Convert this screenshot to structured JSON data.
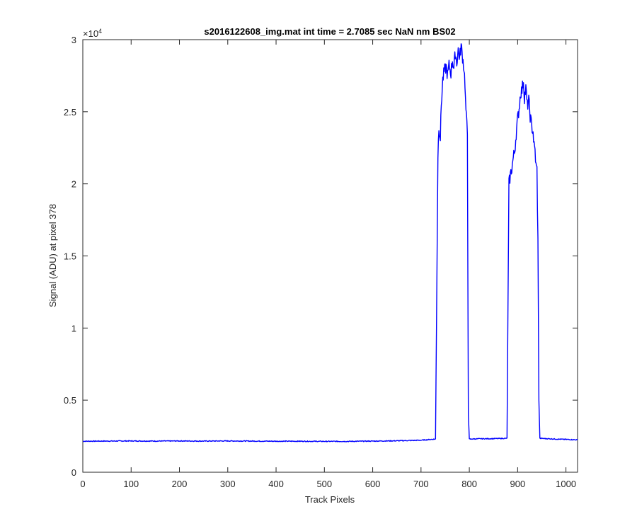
{
  "chart_data": {
    "type": "line",
    "title": "s2016122608_img.mat int time = 2.7085 sec  NaN nm BS02",
    "xlabel": "Track Pixels",
    "ylabel": "Signal (ADU) at pixel 378",
    "xlim": [
      0,
      1024
    ],
    "ylim": [
      0,
      30000
    ],
    "x_ticks": [
      0,
      100,
      200,
      300,
      400,
      500,
      600,
      700,
      800,
      900,
      1000
    ],
    "x_tick_labels": [
      "0",
      "100",
      "200",
      "300",
      "400",
      "500",
      "600",
      "700",
      "800",
      "900",
      "1000"
    ],
    "y_ticks": [
      0,
      5000,
      10000,
      15000,
      20000,
      25000,
      30000
    ],
    "y_tick_labels": [
      "0",
      "0.5",
      "1",
      "1.5",
      "2",
      "2.5",
      "3"
    ],
    "y_exponent_base": "×10",
    "y_exponent_power": "4",
    "grid": false,
    "series": [
      {
        "color": "#0000ff",
        "points": [
          [
            0,
            2150
          ],
          [
            50,
            2160
          ],
          [
            100,
            2170
          ],
          [
            150,
            2160
          ],
          [
            200,
            2170
          ],
          [
            250,
            2160
          ],
          [
            300,
            2170
          ],
          [
            350,
            2160
          ],
          [
            400,
            2150
          ],
          [
            450,
            2150
          ],
          [
            500,
            2140
          ],
          [
            550,
            2140
          ],
          [
            600,
            2160
          ],
          [
            650,
            2180
          ],
          [
            700,
            2220
          ],
          [
            730,
            2300
          ],
          [
            735,
            22000
          ],
          [
            737,
            24000
          ],
          [
            740,
            23200
          ],
          [
            742,
            25500
          ],
          [
            745,
            27200
          ],
          [
            748,
            27800
          ],
          [
            752,
            28100
          ],
          [
            755,
            27500
          ],
          [
            758,
            28200
          ],
          [
            762,
            27700
          ],
          [
            765,
            28600
          ],
          [
            768,
            28000
          ],
          [
            771,
            29100
          ],
          [
            774,
            28400
          ],
          [
            777,
            29300
          ],
          [
            780,
            28700
          ],
          [
            783,
            29600
          ],
          [
            786,
            28800
          ],
          [
            789,
            28000
          ],
          [
            791,
            27000
          ],
          [
            792,
            25800
          ],
          [
            794,
            24500
          ],
          [
            796,
            23500
          ],
          [
            798,
            4000
          ],
          [
            800,
            2300
          ],
          [
            820,
            2320
          ],
          [
            850,
            2330
          ],
          [
            878,
            2350
          ],
          [
            882,
            20000
          ],
          [
            885,
            20600
          ],
          [
            888,
            21100
          ],
          [
            891,
            21800
          ],
          [
            894,
            22300
          ],
          [
            897,
            23500
          ],
          [
            900,
            24500
          ],
          [
            903,
            25200
          ],
          [
            906,
            26300
          ],
          [
            909,
            26500
          ],
          [
            912,
            27200
          ],
          [
            914,
            26000
          ],
          [
            917,
            26600
          ],
          [
            920,
            25400
          ],
          [
            923,
            25800
          ],
          [
            926,
            24700
          ],
          [
            929,
            24000
          ],
          [
            932,
            23600
          ],
          [
            934,
            22600
          ],
          [
            936,
            22300
          ],
          [
            938,
            21200
          ],
          [
            940,
            21000
          ],
          [
            942,
            16000
          ],
          [
            944,
            5000
          ],
          [
            946,
            2350
          ],
          [
            980,
            2300
          ],
          [
            1024,
            2250
          ]
        ]
      }
    ]
  }
}
